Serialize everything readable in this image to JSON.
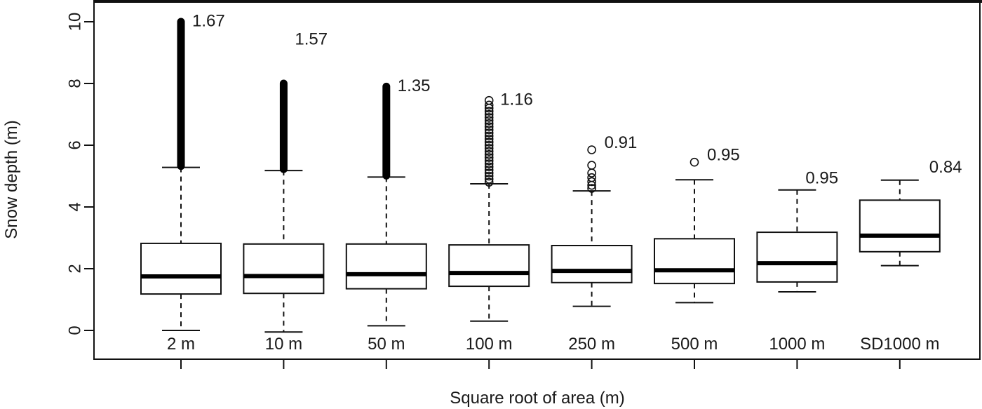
{
  "chart_data": {
    "type": "boxplot",
    "xlabel": "Square root of area (m)",
    "ylabel": "Snow depth (m)",
    "ylim": [
      -0.9,
      10.6
    ],
    "yticks": [
      0,
      2,
      4,
      6,
      8,
      10
    ],
    "categories": [
      "2 m",
      "10 m",
      "50 m",
      "100 m",
      "250 m",
      "500 m",
      "1000 m",
      "SD1000 m"
    ],
    "boxes": [
      {
        "category": "2 m",
        "whisker_low": 0.0,
        "q1": 1.18,
        "median": 1.75,
        "q3": 2.82,
        "whisker_high": 5.28,
        "outlier_max": 10.0,
        "annotation": "1.67"
      },
      {
        "category": "10 m",
        "whisker_low": -0.05,
        "q1": 1.2,
        "median": 1.76,
        "q3": 2.8,
        "whisker_high": 5.18,
        "outlier_max": 8.0,
        "annotation": "1.57"
      },
      {
        "category": "50 m",
        "whisker_low": 0.15,
        "q1": 1.35,
        "median": 1.82,
        "q3": 2.8,
        "whisker_high": 4.97,
        "outlier_max": 7.9,
        "annotation": "1.35"
      },
      {
        "category": "100 m",
        "whisker_low": 0.3,
        "q1": 1.43,
        "median": 1.86,
        "q3": 2.77,
        "whisker_high": 4.75,
        "outlier_max": 7.45,
        "annotation": "1.16"
      },
      {
        "category": "250 m",
        "whisker_low": 0.78,
        "q1": 1.55,
        "median": 1.93,
        "q3": 2.75,
        "whisker_high": 4.52,
        "outlier_max": 5.85,
        "annotation": "0.91"
      },
      {
        "category": "500 m",
        "whisker_low": 0.9,
        "q1": 1.52,
        "median": 1.95,
        "q3": 2.97,
        "whisker_high": 4.88,
        "outlier_max": 5.45,
        "annotation": "0.95"
      },
      {
        "category": "1000 m",
        "whisker_low": 1.25,
        "q1": 1.57,
        "median": 2.18,
        "q3": 3.18,
        "whisker_high": 4.55,
        "outlier_max": null,
        "annotation": "0.95"
      },
      {
        "category": "SD1000 m",
        "whisker_low": 2.1,
        "q1": 2.55,
        "median": 3.07,
        "q3": 4.22,
        "whisker_high": 4.87,
        "outlier_max": null,
        "annotation": "0.84"
      }
    ],
    "outliers": [
      {
        "category": "100 m",
        "values": [
          4.8,
          4.9,
          5.0,
          5.1,
          5.2,
          5.3,
          5.4,
          5.5,
          5.6,
          5.7,
          5.8,
          5.9,
          6.0,
          6.1,
          6.2,
          6.3,
          6.4,
          6.5,
          6.6,
          6.7,
          6.8,
          6.9,
          7.0,
          7.1,
          7.2,
          7.3,
          7.45
        ]
      },
      {
        "category": "250 m",
        "values": [
          4.6,
          4.7,
          4.82,
          4.95,
          5.1,
          5.35,
          5.85
        ]
      },
      {
        "category": "500 m",
        "values": [
          5.45
        ]
      }
    ]
  }
}
